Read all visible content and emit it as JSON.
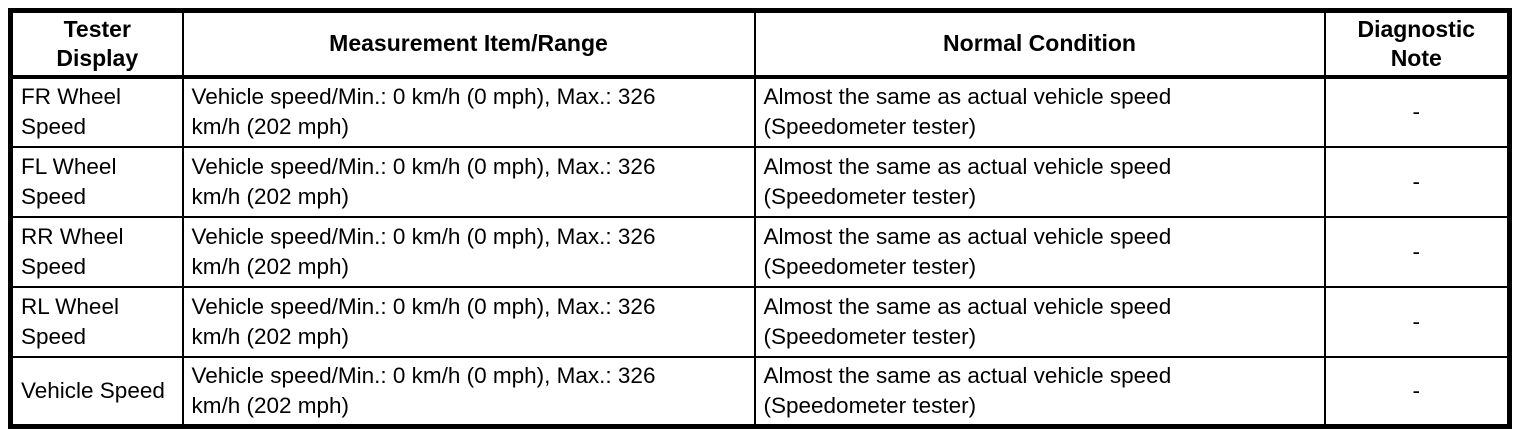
{
  "colors": {
    "border": "#000000",
    "background": "#ffffff",
    "text": "#000000"
  },
  "table": {
    "headers": {
      "tester": "Tester\nDisplay",
      "measurement": "Measurement Item/Range",
      "condition": "Normal Condition",
      "note": "Diagnostic\nNote"
    },
    "rows": [
      {
        "tester": "FR Wheel\nSpeed",
        "measurement": "Vehicle speed/Min.: 0 km/h (0 mph), Max.: 326\nkm/h (202 mph)",
        "condition": "Almost the same as actual vehicle speed\n(Speedometer tester)",
        "note": "-"
      },
      {
        "tester": "FL Wheel\nSpeed",
        "measurement": "Vehicle speed/Min.: 0 km/h (0 mph), Max.: 326\nkm/h (202 mph)",
        "condition": "Almost the same as actual vehicle speed\n(Speedometer tester)",
        "note": "-"
      },
      {
        "tester": "RR Wheel\nSpeed",
        "measurement": "Vehicle speed/Min.: 0 km/h (0 mph), Max.: 326\nkm/h (202 mph)",
        "condition": "Almost the same as actual vehicle speed\n(Speedometer tester)",
        "note": "-"
      },
      {
        "tester": "RL Wheel\nSpeed",
        "measurement": "Vehicle speed/Min.: 0 km/h (0 mph), Max.: 326\nkm/h (202 mph)",
        "condition": "Almost the same as actual vehicle speed\n(Speedometer tester)",
        "note": "-"
      },
      {
        "tester": "Vehicle Speed",
        "measurement": "Vehicle speed/Min.: 0 km/h (0 mph), Max.: 326\nkm/h (202 mph)",
        "condition": "Almost the same as actual vehicle speed\n(Speedometer tester)",
        "note": "-"
      }
    ]
  }
}
